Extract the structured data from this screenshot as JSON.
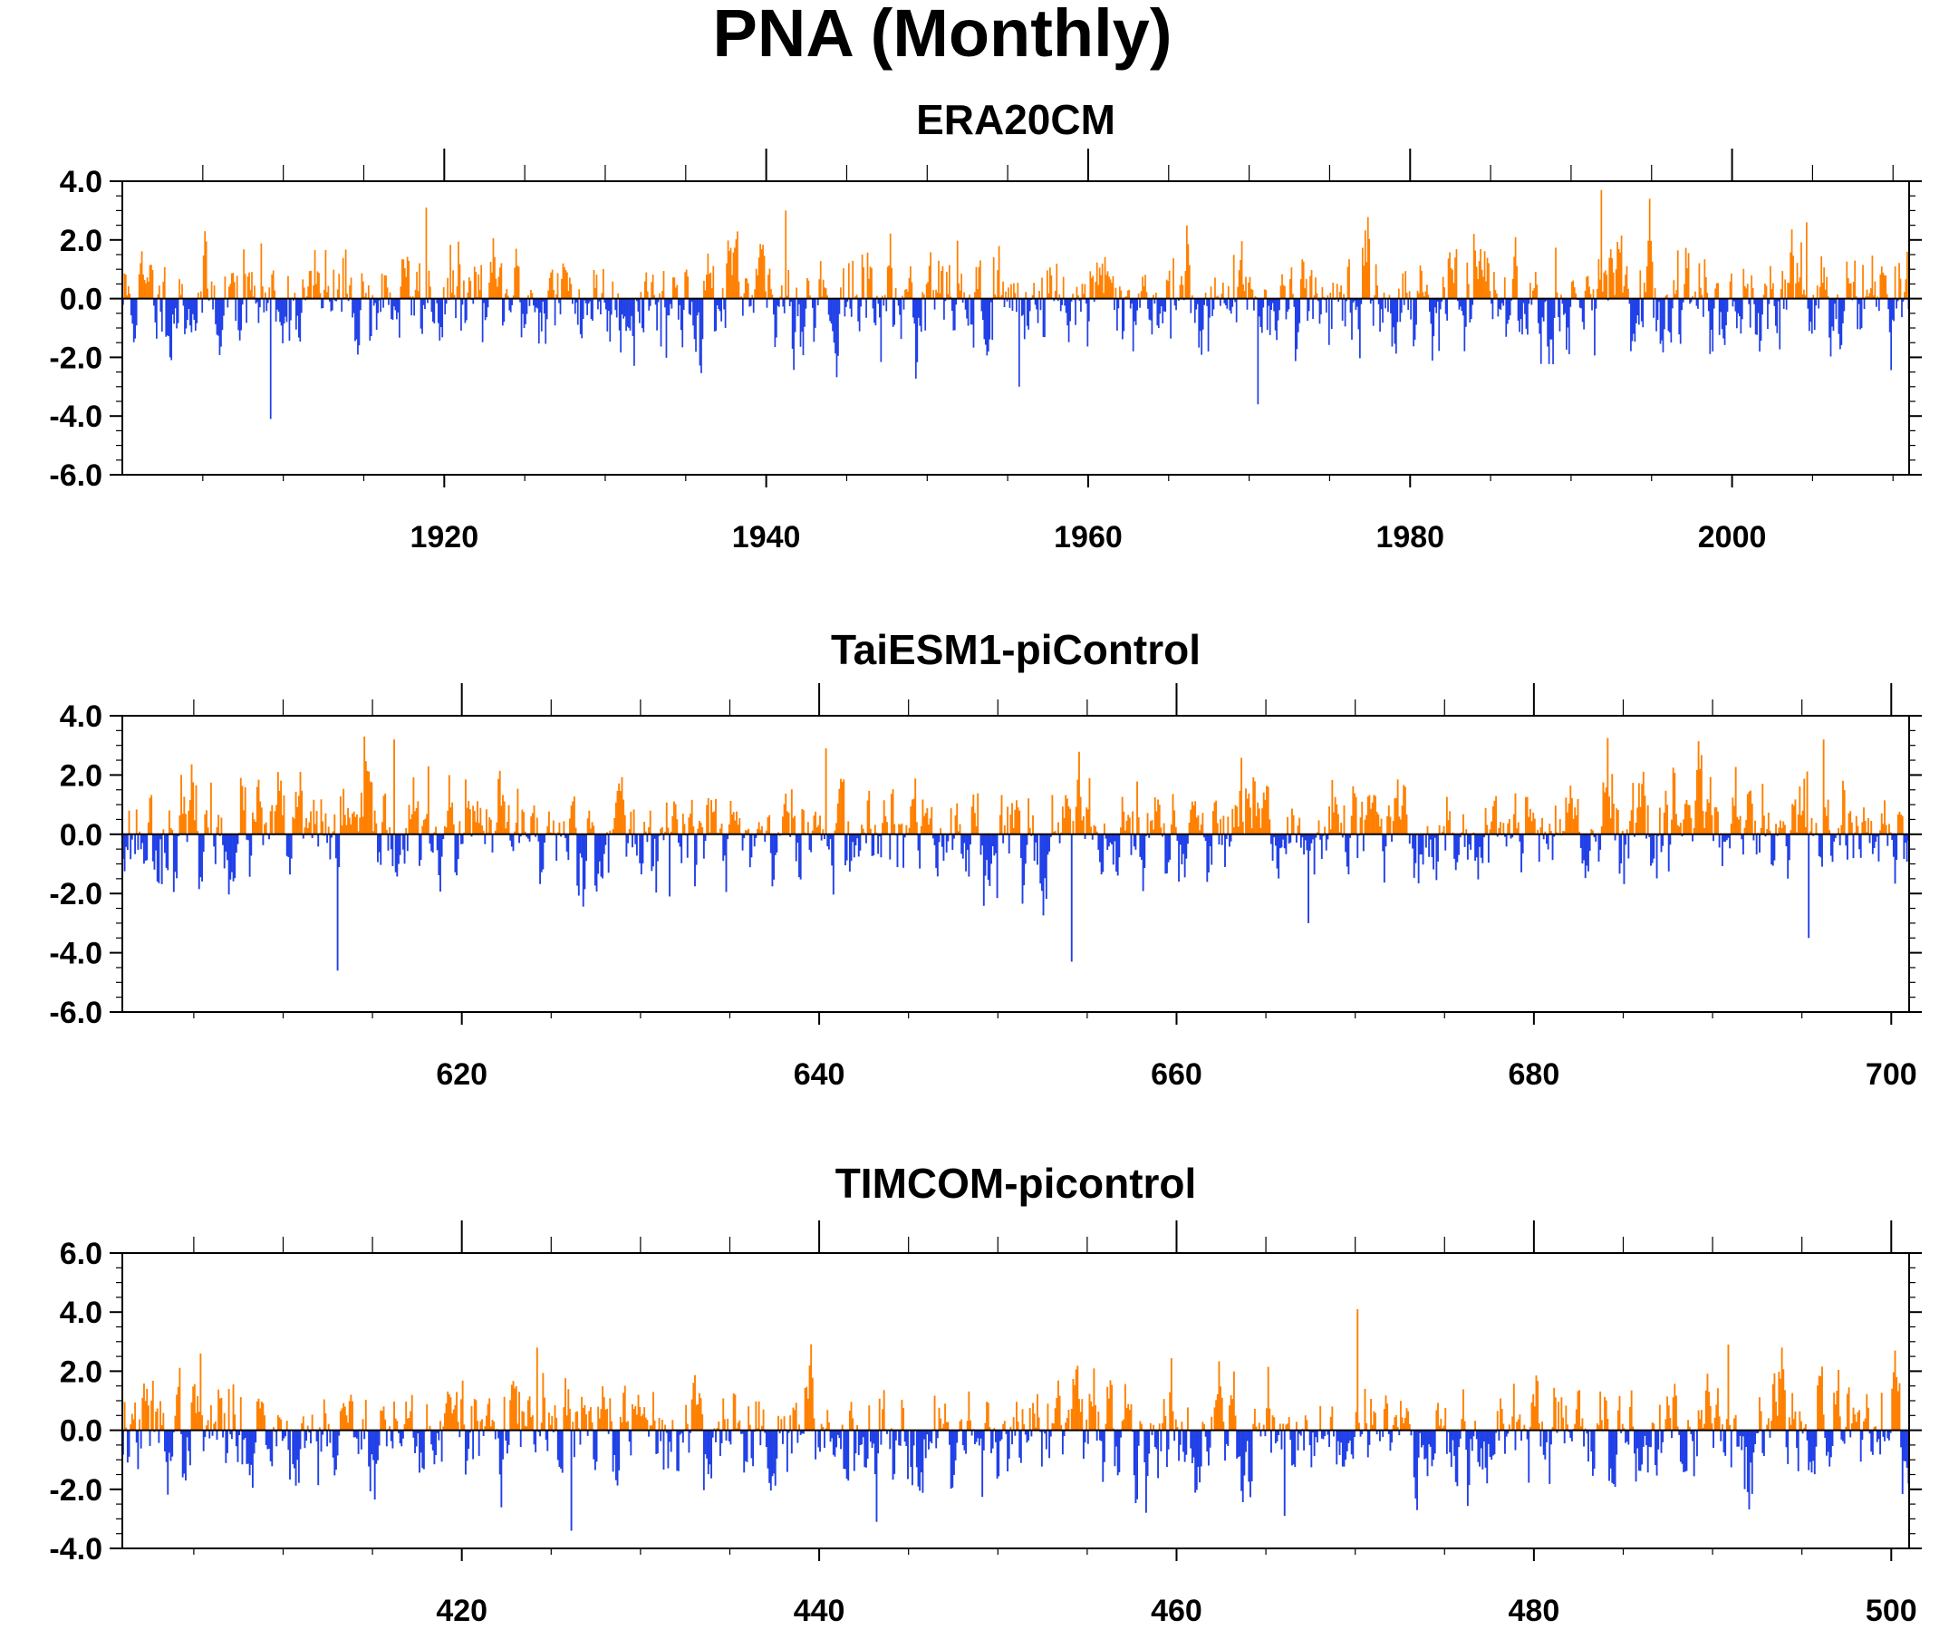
{
  "figure": {
    "title": "PNA (Monthly)"
  },
  "colors": {
    "positive": "#ff8000",
    "negative": "#2040e8",
    "axis": "#000000"
  },
  "chart_data": [
    {
      "type": "bar",
      "title": "ERA20CM",
      "xlabel": "",
      "ylabel": "",
      "xlim": [
        1900,
        2011
      ],
      "ylim": [
        -6.0,
        4.0
      ],
      "ytick_labels": [
        "4.0",
        "2.0",
        "0.0",
        "-2.0",
        "-4.0",
        "-6.0"
      ],
      "xtick_labels": [
        "1920",
        "1940",
        "1960",
        "1980",
        "2000"
      ],
      "xticks": [
        1920,
        1940,
        1960,
        1980,
        2000
      ],
      "yticks": [
        4,
        2,
        0,
        -2,
        -4,
        -6
      ],
      "grid": false,
      "months": 1332,
      "series_seed": 11,
      "notable_values": [
        {
          "x": 1909.2,
          "y": -4.1
        },
        {
          "x": 1918.8,
          "y": 3.1
        },
        {
          "x": 1941.2,
          "y": 3.0
        },
        {
          "x": 1955.7,
          "y": -3.0
        },
        {
          "x": 1970.5,
          "y": -3.6
        },
        {
          "x": 1991.8,
          "y": 3.7
        },
        {
          "x": 2004.6,
          "y": 2.6
        },
        {
          "x": 2010.1,
          "y": 1.1
        }
      ]
    },
    {
      "type": "bar",
      "title": "TaiESM1-piControl",
      "xlabel": "",
      "ylabel": "",
      "xlim": [
        601,
        701
      ],
      "ylim": [
        -6.0,
        4.0
      ],
      "ytick_labels": [
        "4.0",
        "2.0",
        "0.0",
        "-2.0",
        "-4.0",
        "-6.0"
      ],
      "xtick_labels": [
        "620",
        "640",
        "660",
        "680",
        "700"
      ],
      "xticks": [
        620,
        640,
        660,
        680,
        700
      ],
      "yticks": [
        4,
        2,
        0,
        -2,
        -4,
        -6
      ],
      "grid": false,
      "months": 1200,
      "series_seed": 23,
      "notable_values": [
        {
          "x": 613.0,
          "y": -4.6
        },
        {
          "x": 614.5,
          "y": 3.3
        },
        {
          "x": 616.2,
          "y": 3.2
        },
        {
          "x": 640.3,
          "y": 2.9
        },
        {
          "x": 654.1,
          "y": -4.3
        },
        {
          "x": 667.3,
          "y": -3.0
        },
        {
          "x": 695.3,
          "y": -3.5
        },
        {
          "x": 696.2,
          "y": 3.2
        }
      ]
    },
    {
      "type": "bar",
      "title": "TIMCOM-picontrol",
      "xlabel": "",
      "ylabel": "",
      "xlim": [
        401,
        501
      ],
      "ylim": [
        -4.0,
        6.0
      ],
      "ytick_labels": [
        "6.0",
        "4.0",
        "2.0",
        "0.0",
        "-2.0",
        "-4.0"
      ],
      "xtick_labels": [
        "420",
        "440",
        "460",
        "480",
        "500"
      ],
      "xticks": [
        420,
        440,
        460,
        480,
        500
      ],
      "yticks": [
        6,
        4,
        2,
        0,
        -2,
        -4
      ],
      "grid": false,
      "months": 1200,
      "series_seed": 37,
      "notable_values": [
        {
          "x": 405.3,
          "y": 2.6
        },
        {
          "x": 424.2,
          "y": 2.8
        },
        {
          "x": 426.1,
          "y": -3.4
        },
        {
          "x": 443.2,
          "y": -3.1
        },
        {
          "x": 466.0,
          "y": -2.9
        },
        {
          "x": 470.1,
          "y": 4.1
        },
        {
          "x": 490.8,
          "y": 2.9
        }
      ]
    }
  ]
}
